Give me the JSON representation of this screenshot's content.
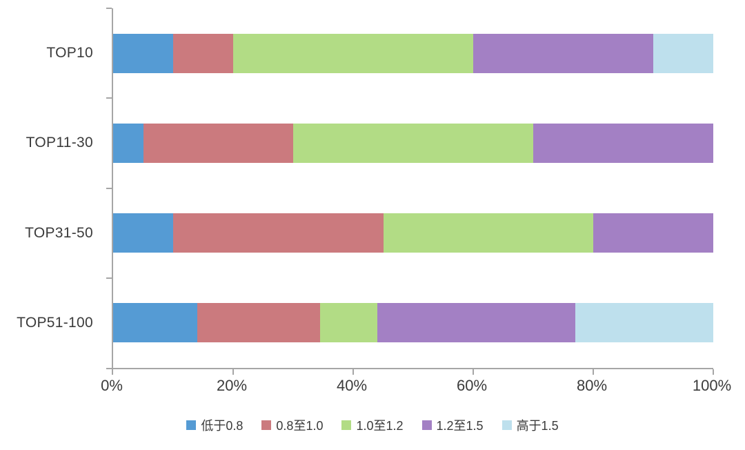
{
  "chart_data": {
    "type": "bar",
    "orientation": "horizontal_stacked",
    "title": "",
    "xlabel": "",
    "ylabel": "",
    "categories": [
      "TOP10",
      "TOP11-30",
      "TOP31-50",
      "TOP51-100"
    ],
    "series": [
      {
        "name": "低于0.8",
        "color": "#559BD4",
        "values": [
          10,
          5,
          10,
          14
        ]
      },
      {
        "name": "0.8至1.0",
        "color": "#CB7A7E",
        "values": [
          10,
          25,
          35,
          20.5
        ]
      },
      {
        "name": "1.0至1.2",
        "color": "#B2DC85",
        "values": [
          40,
          40,
          35,
          9.5
        ]
      },
      {
        "name": "1.2至1.5",
        "color": "#A380C4",
        "values": [
          30,
          30,
          20,
          33
        ]
      },
      {
        "name": "高于1.5",
        "color": "#BEE0ED",
        "values": [
          10,
          0,
          0,
          23
        ]
      }
    ],
    "x_axis": {
      "min": 0,
      "max": 100,
      "tick_step": 20,
      "tick_labels": [
        "0%",
        "20%",
        "40%",
        "60%",
        "80%",
        "100%"
      ]
    },
    "grid": false,
    "legend_position": "bottom",
    "axis_color": "#a6a6a6",
    "text_color": "#3b3b3b",
    "background_color": "#ffffff"
  }
}
